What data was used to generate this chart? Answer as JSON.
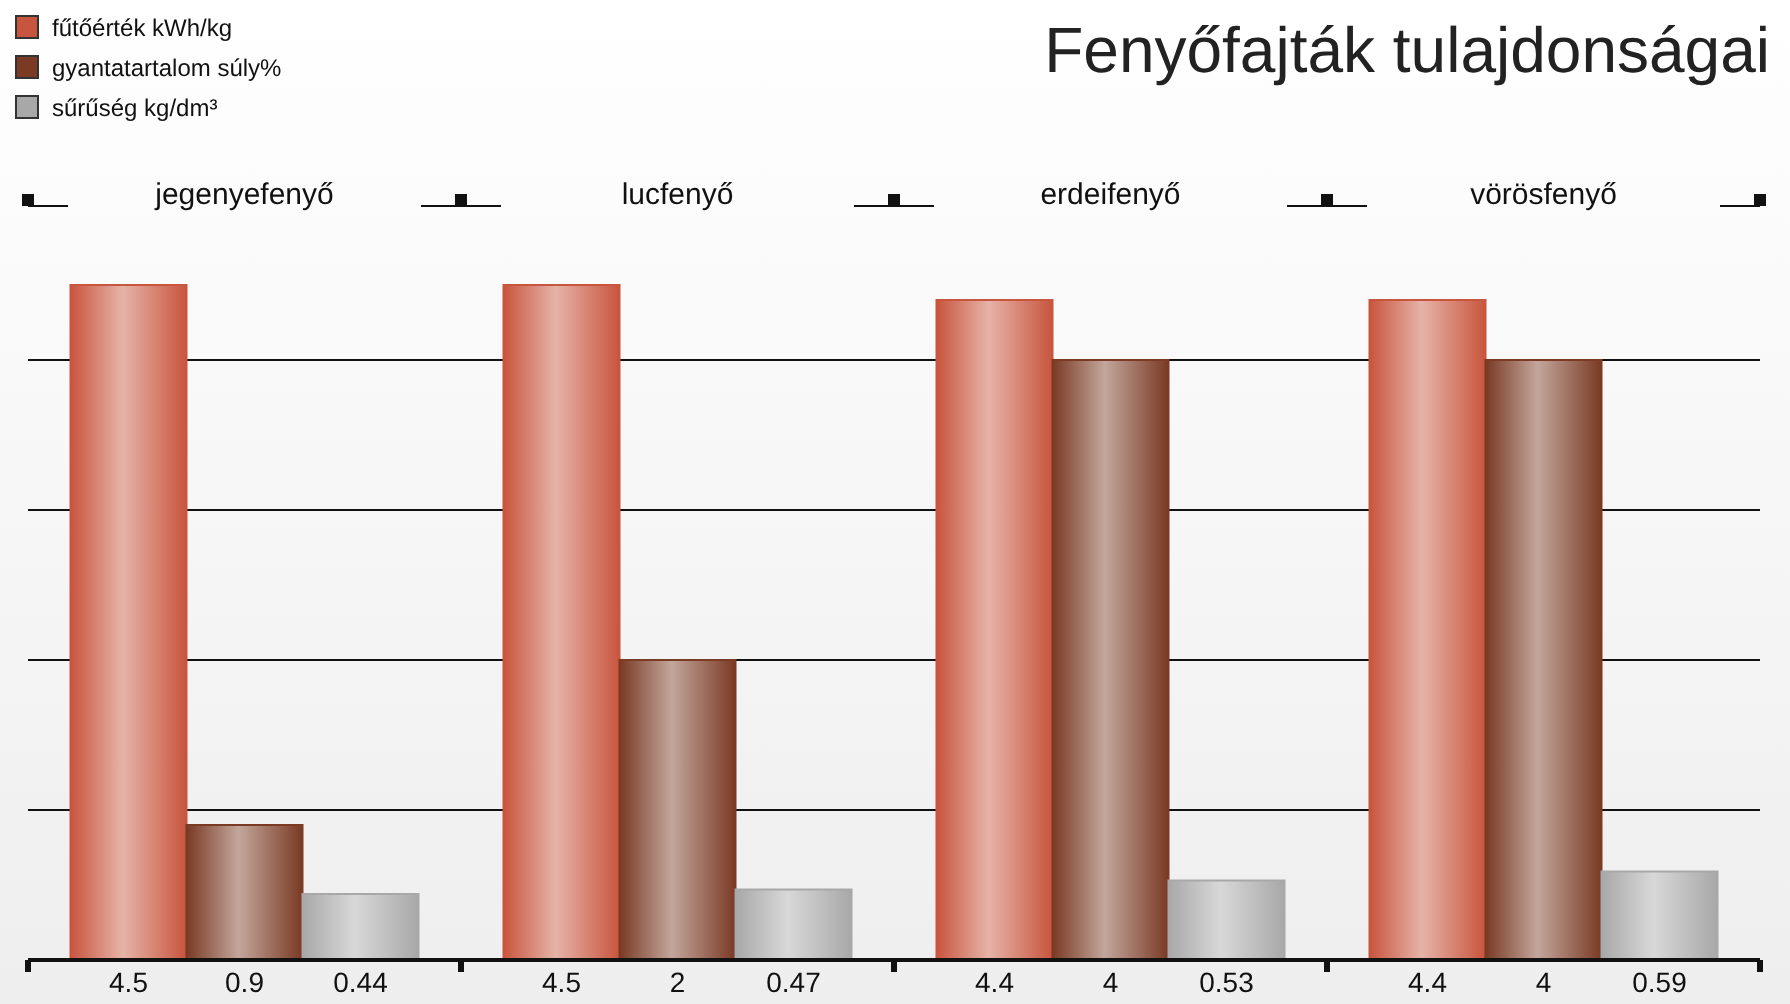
{
  "chart_data": {
    "type": "bar",
    "title": "Fenyőfajták tulajdonságai",
    "categories": [
      "jegenyefenyő",
      "lucfenyő",
      "erdeifenyő",
      "vörösfenyő"
    ],
    "series": [
      {
        "name": "fűtőérték kWh/kg",
        "color": "#c8553d",
        "values": [
          4.5,
          4.5,
          4.4,
          4.4
        ]
      },
      {
        "name": "gyantatartalom súly%",
        "color": "#7a3a24",
        "values": [
          0.9,
          2,
          4,
          4
        ]
      },
      {
        "name": "sűrűség kg/dm³",
        "color": "#a8a8a8",
        "values": [
          0.44,
          0.47,
          0.53,
          0.59
        ]
      }
    ],
    "yticks": [
      {
        "value": 1,
        "label": null
      },
      {
        "value": 2,
        "label": null
      },
      {
        "value": 3,
        "label": null
      },
      {
        "value": 4,
        "label": null
      }
    ],
    "grid": "y",
    "legend": "top left",
    "data_labels": true,
    "tick_labels": "x"
  }
}
